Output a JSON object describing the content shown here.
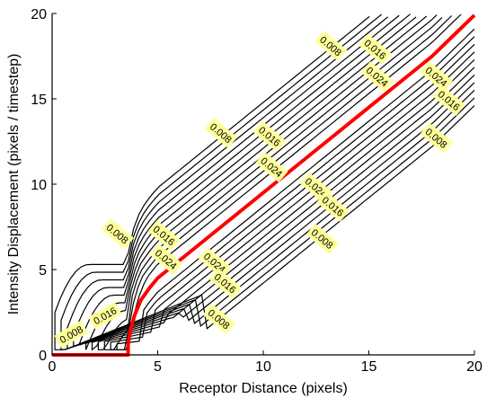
{
  "chart_data": {
    "type": "contour",
    "title": "",
    "xlabel": "Receptor Distance (pixels)",
    "ylabel": "Intensity Displacement (pixels / timestep)",
    "xlim": [
      0,
      20
    ],
    "ylim": [
      0,
      20
    ],
    "xticks": [
      0,
      5,
      10,
      15,
      20
    ],
    "yticks": [
      0,
      5,
      10,
      15,
      20
    ],
    "grid": false,
    "contour_levels": [
      0.004,
      0.006,
      0.008,
      0.01,
      0.012,
      0.014,
      0.016,
      0.018,
      0.02,
      0.022,
      0.024
    ],
    "contour_color": "#000000",
    "label_background": "#ffff99",
    "contour_labels": [
      {
        "text": "0.008",
        "x": 0.9,
        "y": 1.2,
        "angle": -30
      },
      {
        "text": "0.016",
        "x": 2.5,
        "y": 2.3,
        "angle": -30
      },
      {
        "text": "0.008",
        "x": 3.1,
        "y": 7.1,
        "angle": 40
      },
      {
        "text": "0.016",
        "x": 5.3,
        "y": 7.0,
        "angle": 40
      },
      {
        "text": "0.024",
        "x": 5.4,
        "y": 5.6,
        "angle": 40
      },
      {
        "text": "0.024",
        "x": 7.7,
        "y": 5.4,
        "angle": 40
      },
      {
        "text": "0.016",
        "x": 8.2,
        "y": 4.2,
        "angle": 40
      },
      {
        "text": "0.008",
        "x": 7.9,
        "y": 2.1,
        "angle": 40
      },
      {
        "text": "0.008",
        "x": 8.0,
        "y": 13.0,
        "angle": 40
      },
      {
        "text": "0.016",
        "x": 10.3,
        "y": 12.8,
        "angle": 40
      },
      {
        "text": "0.024",
        "x": 10.4,
        "y": 11.0,
        "angle": 40
      },
      {
        "text": "0.024",
        "x": 12.5,
        "y": 9.8,
        "angle": 40
      },
      {
        "text": "0.016",
        "x": 13.3,
        "y": 8.7,
        "angle": 40
      },
      {
        "text": "0.008",
        "x": 12.8,
        "y": 6.8,
        "angle": 40
      },
      {
        "text": "0.008",
        "x": 13.2,
        "y": 18.1,
        "angle": 40
      },
      {
        "text": "0.016",
        "x": 15.3,
        "y": 17.9,
        "angle": 40
      },
      {
        "text": "0.024",
        "x": 15.4,
        "y": 16.3,
        "angle": 40
      },
      {
        "text": "0.024",
        "x": 18.2,
        "y": 16.3,
        "angle": 40
      },
      {
        "text": "0.016",
        "x": 18.8,
        "y": 14.9,
        "angle": 40
      },
      {
        "text": "0.008",
        "x": 18.2,
        "y": 12.7,
        "angle": 40
      }
    ],
    "series": [
      {
        "color": "#ff0000",
        "x": [
          0,
          3.6,
          3.6,
          3.7,
          3.9,
          4.2,
          4.6,
          5.0,
          5.5,
          6.0,
          8,
          10,
          12,
          14,
          16,
          18,
          20
        ],
        "y": [
          0,
          0,
          0.6,
          1.4,
          2.3,
          3.2,
          3.9,
          4.5,
          5.0,
          5.5,
          7.5,
          9.5,
          11.5,
          13.5,
          15.5,
          17.5,
          19.9
        ]
      }
    ]
  }
}
